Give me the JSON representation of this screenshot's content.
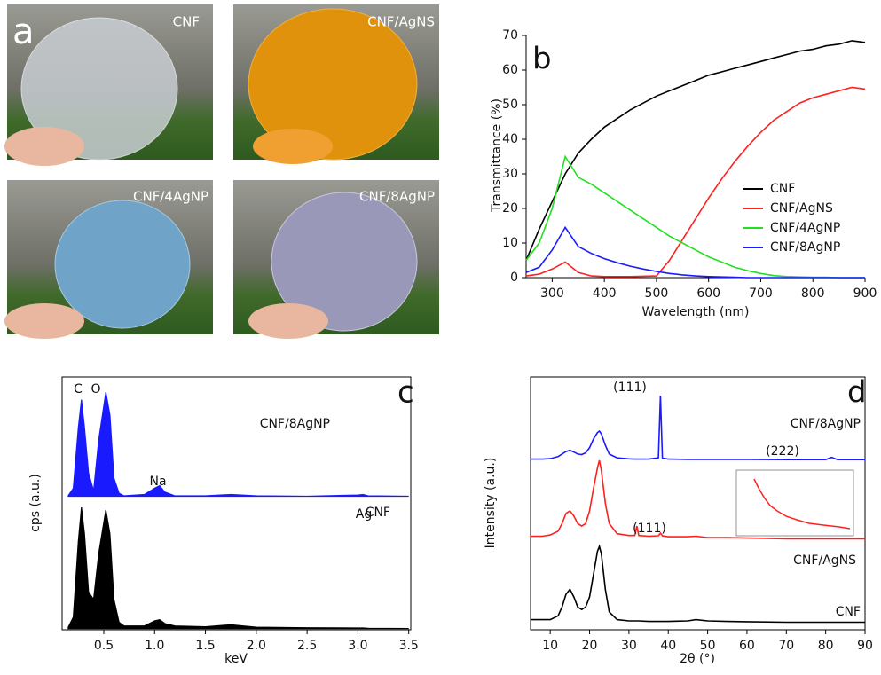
{
  "photos": {
    "panel_label": "a",
    "items": [
      {
        "label": "CNF"
      },
      {
        "label": "CNF/AgNS"
      },
      {
        "label": "CNF/4AgNP"
      },
      {
        "label": "CNF/8AgNP"
      }
    ]
  },
  "chart_data": [
    {
      "type": "line",
      "panel_label": "b",
      "x_label": "Wavelength (nm)",
      "y_label": "Transmittance (%)",
      "x": [
        250,
        275,
        300,
        325,
        350,
        375,
        400,
        425,
        450,
        475,
        500,
        525,
        550,
        575,
        600,
        625,
        650,
        675,
        700,
        725,
        750,
        775,
        800,
        825,
        850,
        875,
        900
      ],
      "series": [
        {
          "name": "CNF",
          "color": "#000000",
          "values": [
            5,
            14,
            22,
            30,
            36,
            40,
            43.5,
            46,
            48.5,
            50.5,
            52.5,
            54,
            55.5,
            57,
            58.5,
            59.5,
            60.5,
            61.5,
            62.5,
            63.5,
            64.5,
            65.5,
            66,
            67,
            67.5,
            68.5,
            68
          ]
        },
        {
          "name": "CNF/AgNS",
          "color": "#ff2020",
          "values": [
            0.5,
            1,
            2.5,
            4.5,
            1.5,
            0.5,
            0.3,
            0.3,
            0.3,
            0.4,
            0.5,
            5,
            11,
            17,
            23,
            28.5,
            33.5,
            38,
            42,
            45.5,
            48,
            50.5,
            52,
            53,
            54,
            55,
            54.5
          ]
        },
        {
          "name": "CNF/4AgNP",
          "color": "#22e022",
          "values": [
            5,
            10,
            20,
            35,
            29,
            27,
            24.5,
            22,
            19.5,
            17,
            14.5,
            12,
            10,
            8,
            6,
            4.5,
            3,
            2,
            1.2,
            0.6,
            0.3,
            0.2,
            0.1,
            0.1,
            0,
            0,
            0
          ]
        },
        {
          "name": "CNF/8AgNP",
          "color": "#1a1aff",
          "values": [
            1.5,
            3,
            8,
            14.5,
            9,
            7,
            5.5,
            4.3,
            3.3,
            2.5,
            1.8,
            1.2,
            0.8,
            0.5,
            0.3,
            0.2,
            0.1,
            0,
            0,
            0,
            0,
            0,
            0,
            0,
            0,
            0,
            0
          ]
        }
      ],
      "xlim": [
        250,
        900
      ],
      "xticks": [
        300,
        400,
        500,
        600,
        700,
        800,
        900
      ],
      "ylim": [
        0,
        70
      ],
      "yticks": [
        0,
        10,
        20,
        30,
        40,
        50,
        60,
        70
      ],
      "legend": "right"
    },
    {
      "type": "area",
      "panel_label": "c",
      "x_label": "keV",
      "y_label": "cps (a.u.)",
      "x": [
        0.15,
        0.2,
        0.25,
        0.28,
        0.31,
        0.35,
        0.4,
        0.45,
        0.52,
        0.56,
        0.6,
        0.65,
        0.7,
        0.9,
        1.0,
        1.05,
        1.1,
        1.2,
        1.5,
        1.75,
        2.0,
        2.5,
        3.0,
        3.05,
        3.1,
        3.5
      ],
      "series": [
        {
          "name": "CNF/8AgNP",
          "color": "#1a1aff",
          "values": [
            53,
            56,
            80,
            91,
            80,
            62,
            55,
            75,
            94,
            85,
            60,
            54,
            53,
            53.5,
            56,
            57,
            54.5,
            53,
            53,
            53.5,
            53,
            52.8,
            53.3,
            53.5,
            53,
            52.8
          ]
        },
        {
          "name": "CNF",
          "color": "#000000",
          "values": [
            1,
            5,
            35,
            48.4,
            38,
            15,
            12,
            30,
            47.4,
            38,
            12,
            3,
            1.5,
            1.5,
            3.5,
            4,
            2.5,
            1.5,
            1.2,
            2,
            1,
            0.8,
            0.7,
            0.7,
            0.6,
            0.5
          ]
        }
      ],
      "annotations": [
        {
          "text": "C"
        },
        {
          "text": "O"
        },
        {
          "text": "Na"
        },
        {
          "text": "Ag"
        }
      ],
      "xlim": [
        0.09,
        3.52
      ],
      "xticks": [
        {
          "value": 0.5,
          "label": "0.5"
        },
        {
          "value": 1,
          "label": "1.0"
        },
        {
          "value": 1.5,
          "label": "1.5"
        },
        {
          "value": 2,
          "label": "2.0"
        },
        {
          "value": 2.5,
          "label": "2.5"
        },
        {
          "value": 3,
          "label": "3.0"
        },
        {
          "value": 3.5,
          "label": "3.5"
        }
      ],
      "ylim": [
        0,
        100
      ]
    },
    {
      "type": "line",
      "panel_label": "d",
      "x_label": "2θ (°)",
      "y_label": "Intensity (a.u.)",
      "x": [
        5,
        8,
        10,
        12,
        13,
        14,
        15,
        16,
        17,
        18,
        19,
        20,
        21,
        22,
        22.5,
        23,
        24,
        25,
        27,
        30,
        31.5,
        32,
        32.5,
        35,
        37.5,
        38,
        38.5,
        40,
        45,
        47,
        50,
        55,
        60,
        70,
        80,
        81.5,
        83,
        90
      ],
      "series": [
        {
          "name": "CNF/8AgNP",
          "color": "#1a1aff",
          "values": [
            67.5,
            67.5,
            67.7,
            68.5,
            69.5,
            70.5,
            71,
            70.3,
            69.5,
            69.3,
            70,
            72,
            75.5,
            78,
            78.6,
            77.5,
            73,
            69.5,
            68,
            67.6,
            67.5,
            67.5,
            67.5,
            67.5,
            68,
            92.6,
            68,
            67.5,
            67.4,
            67.4,
            67.4,
            67.4,
            67.4,
            67.3,
            67.3,
            68.2,
            67.3,
            67.3
          ]
        },
        {
          "name": "CNF/AgNS",
          "color": "#ff2020",
          "values": [
            37,
            37,
            37.5,
            39,
            42,
            46,
            47,
            45,
            42,
            41,
            42,
            47,
            56,
            64,
            67,
            63,
            50,
            42,
            38,
            37.3,
            37.3,
            41,
            37.3,
            37,
            37.2,
            38.2,
            37.2,
            36.8,
            36.8,
            37,
            36.5,
            36.5,
            36.3,
            36,
            36,
            36,
            36,
            36
          ]
        },
        {
          "name": "CNF",
          "color": "#000000",
          "values": [
            4,
            4,
            4,
            5.5,
            9,
            14,
            16,
            13,
            9,
            8,
            9,
            13,
            22,
            31,
            33,
            30,
            16,
            7,
            4,
            3.5,
            3.5,
            3.5,
            3.5,
            3.3,
            3.3,
            3.3,
            3.3,
            3.3,
            3.5,
            4,
            3.5,
            3.3,
            3.2,
            3,
            3,
            3,
            3,
            3
          ]
        }
      ],
      "annotations": [
        {
          "text": "(111)"
        },
        {
          "text": "(222)"
        },
        {
          "text": "(111)"
        }
      ],
      "xlim": [
        5,
        90
      ],
      "xticks": [
        10,
        20,
        30,
        40,
        50,
        60,
        70,
        80,
        90
      ],
      "ylim": [
        0,
        100
      ]
    }
  ]
}
